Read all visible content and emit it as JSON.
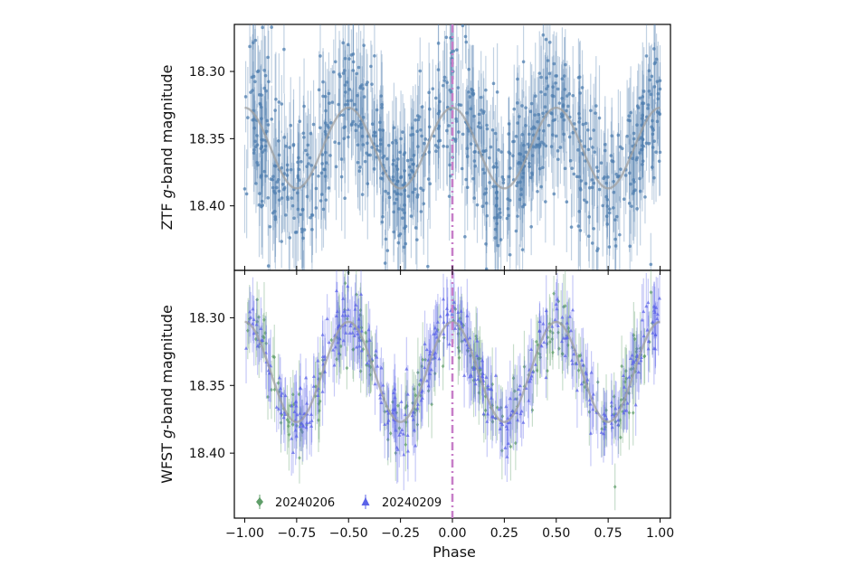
{
  "chart_data": [
    {
      "type": "scatter",
      "panel": "top",
      "ylabel_prefix": "ZTF ",
      "ylabel_italic": "g",
      "ylabel_suffix": "-band magnitude",
      "xlabel": "",
      "xlim": [
        -1.05,
        1.05
      ],
      "ylim": [
        18.265,
        18.448
      ],
      "y_inverted": true,
      "yticks": [
        18.3,
        18.35,
        18.4
      ],
      "ytick_labels": [
        "18.30",
        "18.35",
        "18.40"
      ],
      "xticks": [
        -1.0,
        -0.75,
        -0.5,
        -0.25,
        0.0,
        0.25,
        0.5,
        0.75,
        1.0
      ],
      "grid": false,
      "series": [
        {
          "kind": "points",
          "color": "#4f7fb0",
          "n_points": 900,
          "noise": 0.03,
          "errorbar": 0.03
        },
        {
          "kind": "model",
          "color": "#a0a0a0",
          "mean": 18.357,
          "amplitude": 0.03,
          "harmonics": 2
        }
      ],
      "vline": {
        "x": 0.0,
        "color": "#c77ec8",
        "style": "dashdot"
      }
    },
    {
      "type": "scatter",
      "panel": "bottom",
      "ylabel_prefix": "WFST ",
      "ylabel_italic": "g",
      "ylabel_suffix": "-band magnitude",
      "xlabel": "Phase",
      "xlim": [
        -1.05,
        1.05
      ],
      "ylim": [
        18.265,
        18.448
      ],
      "y_inverted": true,
      "yticks": [
        18.3,
        18.35,
        18.4
      ],
      "ytick_labels": [
        "18.30",
        "18.35",
        "18.40"
      ],
      "xticks": [
        -1.0,
        -0.75,
        -0.5,
        -0.25,
        0.0,
        0.25,
        0.5,
        0.75,
        1.0
      ],
      "xtick_labels": [
        "−1.00",
        "−0.75",
        "−0.50",
        "−0.25",
        "0.00",
        "0.25",
        "0.50",
        "0.75",
        "1.00"
      ],
      "grid": false,
      "legend_position": "lower-left",
      "series": [
        {
          "name": "20240206",
          "kind": "points",
          "marker": "diamond",
          "color": "#5f9e69",
          "n_points": 260,
          "noise": 0.012,
          "errorbar": 0.02
        },
        {
          "name": "20240209",
          "kind": "points",
          "marker": "triangle",
          "color": "#5b63e8",
          "n_points": 420,
          "noise": 0.012,
          "errorbar": 0.02
        },
        {
          "kind": "model",
          "color": "#a0a0a0",
          "mean": 18.34,
          "amplitude": 0.037,
          "harmonics": 2
        }
      ],
      "vline": {
        "x": 0.0,
        "color": "#c77ec8",
        "style": "dashdot"
      }
    }
  ]
}
